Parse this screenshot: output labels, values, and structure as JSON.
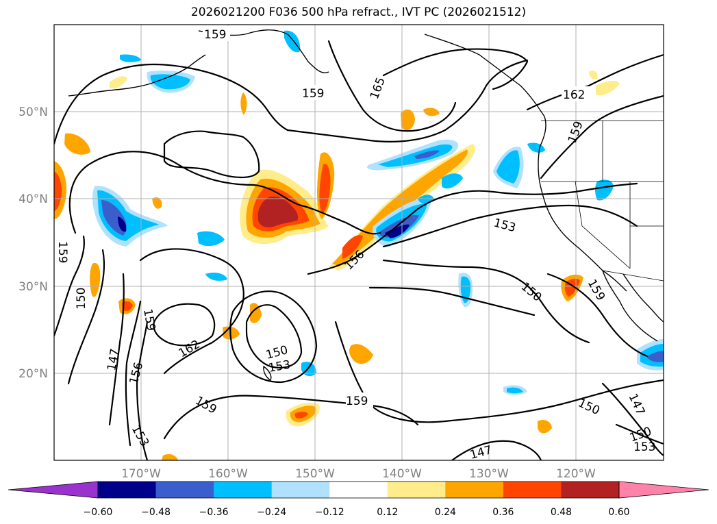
{
  "title": "2026021200 F036 500 hPa refract., IVT PC (2026021512)",
  "map": {
    "lat_labels": [
      "50°N",
      "40°N",
      "30°N",
      "20°N"
    ],
    "lon_labels": [
      "170°W",
      "160°W",
      "150°W",
      "140°W",
      "130°W",
      "120°W"
    ]
  },
  "contour_labels": [
    "159",
    "159",
    "165",
    "162",
    "159",
    "153",
    "156",
    "150",
    "159",
    "150",
    "159",
    "162",
    "147",
    "156",
    "150",
    "153",
    "159",
    "159",
    "150",
    "147",
    "150",
    "153",
    "153",
    "147",
    "159"
  ],
  "colorbar": {
    "tick_labels": [
      "−0.60",
      "−0.48",
      "−0.36",
      "−0.24",
      "−0.12",
      "0.12",
      "0.24",
      "0.36",
      "0.48",
      "0.60"
    ],
    "colors": [
      "#9a32cd",
      "#00008b",
      "#3a5fcd",
      "#00bfff",
      "#b0e2ff",
      "#ffffff",
      "#ffec8b",
      "#ffa500",
      "#ff4500",
      "#b22222",
      "#ff82ab"
    ]
  },
  "chart_data": {
    "type": "heatmap",
    "title": "2026021200 F036 500 hPa refract., IVT PC (2026021512)",
    "variable_contours": "500 hPa refractivity",
    "variable_shaded": "IVT PC",
    "contour_levels": [
      147,
      150,
      153,
      156,
      159,
      162,
      165
    ],
    "shade_levels": [
      -0.6,
      -0.48,
      -0.36,
      -0.24,
      -0.12,
      0.12,
      0.24,
      0.36,
      0.48,
      0.6
    ],
    "lon_range": [
      -180,
      -110
    ],
    "lat_range": [
      10,
      60
    ],
    "xticks": [
      "170°W",
      "160°W",
      "150°W",
      "140°W",
      "130°W",
      "120°W"
    ],
    "yticks": [
      "50°N",
      "40°N",
      "30°N",
      "20°N"
    ],
    "grid": true
  }
}
